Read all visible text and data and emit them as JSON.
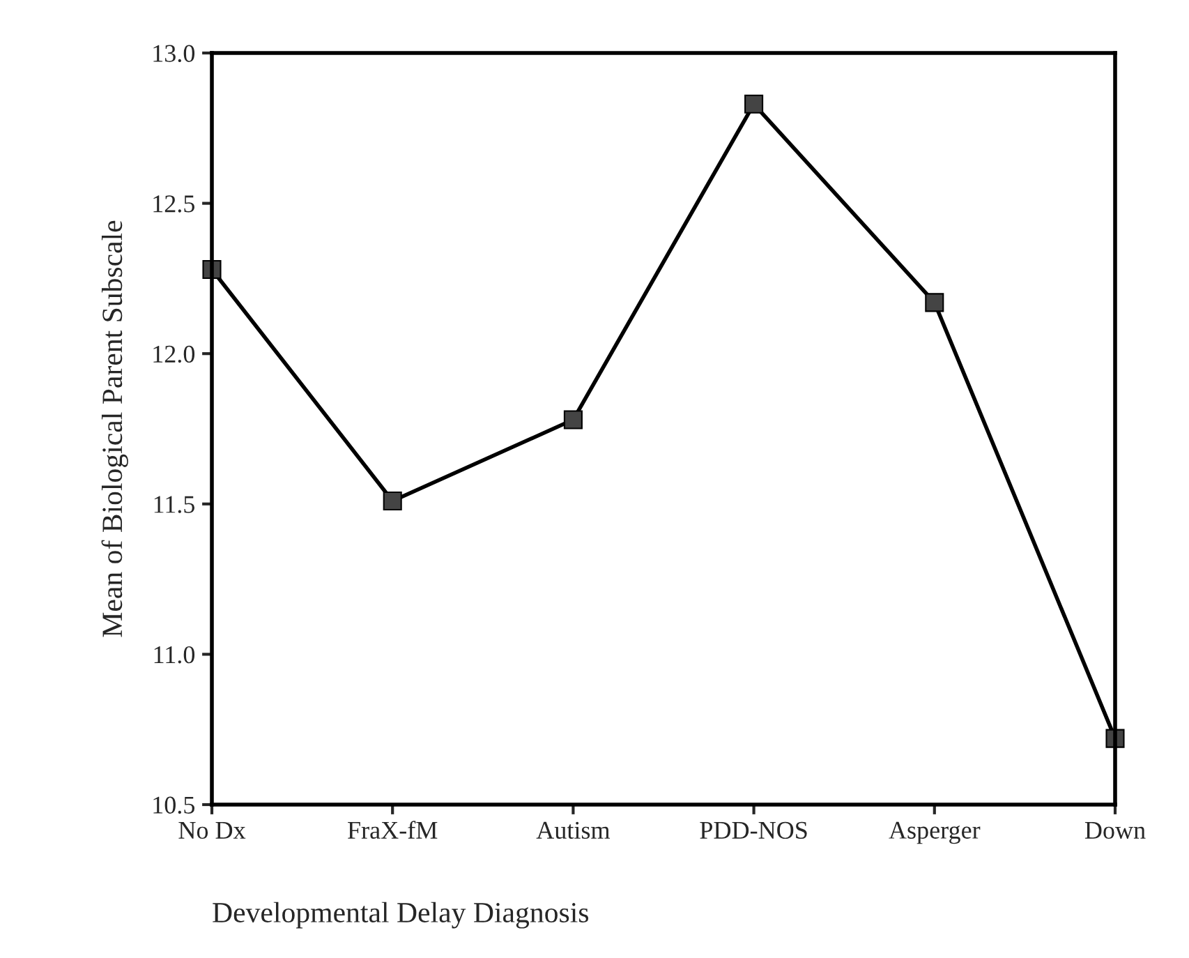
{
  "chart_data": {
    "type": "line",
    "xlabel": "Developmental Delay Diagnosis",
    "ylabel": "Mean of Biological Parent Subscale",
    "categories": [
      "No Dx",
      "FraX-fM",
      "Autism",
      "PDD-NOS",
      "Asperger",
      "Down"
    ],
    "series": [
      {
        "color": "#000000",
        "values": [
          12.28,
          11.51,
          11.78,
          12.83,
          12.17,
          10.72
        ]
      }
    ],
    "ylim": [
      10.5,
      13.0
    ],
    "yticks": [
      {
        "value": 10.5,
        "label": "10.5"
      },
      {
        "value": 11.0,
        "label": "11.0"
      },
      {
        "value": 11.5,
        "label": "11.5"
      },
      {
        "value": 12.0,
        "label": "12.0"
      },
      {
        "value": 12.5,
        "label": "12.5"
      },
      {
        "value": 13.0,
        "label": "13.0"
      }
    ],
    "grid": false,
    "legend": false,
    "marker": "square",
    "line_style": "solid"
  }
}
